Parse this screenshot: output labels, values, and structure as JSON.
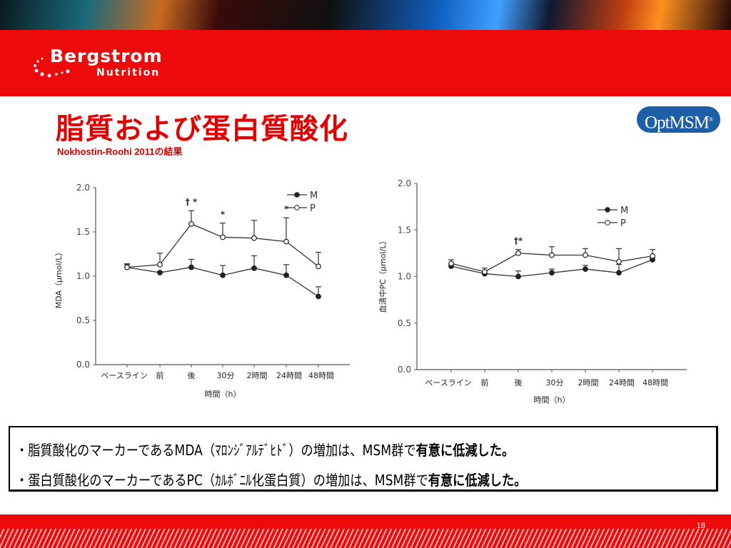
{
  "header": {
    "brand_name": "Bergstrom",
    "brand_sub": "Nutrition",
    "product_logo": "OptMSM",
    "product_logo_mark": "®"
  },
  "title": "脂質および蛋白質酸化",
  "subtitle": "Nokhostin-Roohi 2011の結果",
  "colors": {
    "accent_red": "#ec0a0a",
    "title_red": "#e00000",
    "optmsm_blue": "#1c5ea8"
  },
  "chart_data": [
    {
      "type": "line",
      "ylabel": "MDA（μmol/L）",
      "xlabel": "時間（h）",
      "categories": [
        "ベースライン",
        "前",
        "後",
        "30分",
        "2時間",
        "24時間",
        "48時間"
      ],
      "ylim": [
        0,
        2.0
      ],
      "yticks": [
        "0.0",
        "0.5",
        "1.0",
        "1.5",
        "2.0"
      ],
      "legend_position": "top-right",
      "series": [
        {
          "name": "M",
          "marker": "filled",
          "values": [
            1.1,
            1.04,
            1.1,
            1.01,
            1.09,
            1.01,
            0.77
          ],
          "error_upper": [
            1.13,
            1.05,
            1.19,
            1.12,
            1.23,
            1.13,
            0.88
          ]
        },
        {
          "name": "P",
          "marker": "open",
          "values": [
            1.1,
            1.13,
            1.59,
            1.44,
            1.43,
            1.39,
            1.11
          ],
          "error_upper": [
            1.14,
            1.26,
            1.74,
            1.6,
            1.63,
            1.66,
            1.27
          ]
        }
      ],
      "annotations": [
        {
          "category": "後",
          "text": "† *"
        },
        {
          "category": "30分",
          "text": "*"
        },
        {
          "category": "24時間",
          "text": "*"
        }
      ]
    },
    {
      "type": "line",
      "ylabel": "血清中PC（μmol/L）",
      "xlabel": "時間（h）",
      "categories": [
        "ベースライン",
        "前",
        "後",
        "30分",
        "2時間",
        "24時間",
        "48時間"
      ],
      "ylim": [
        0,
        2.0
      ],
      "yticks": [
        "0.0",
        "0.5",
        "1.0",
        "1.5",
        "2.0"
      ],
      "legend_position": "top-right",
      "series": [
        {
          "name": "M",
          "marker": "filled",
          "values": [
            1.11,
            1.03,
            1.0,
            1.04,
            1.08,
            1.04,
            1.18
          ],
          "error_upper": [
            1.13,
            1.05,
            1.06,
            1.08,
            1.12,
            1.13,
            1.2
          ]
        },
        {
          "name": "P",
          "marker": "open",
          "values": [
            1.14,
            1.05,
            1.25,
            1.23,
            1.23,
            1.16,
            1.22
          ],
          "error_upper": [
            1.18,
            1.09,
            1.29,
            1.32,
            1.3,
            1.3,
            1.29
          ]
        }
      ],
      "annotations": [
        {
          "category": "後",
          "text": "†*"
        }
      ]
    }
  ],
  "summary": {
    "line1_pre": "・脂質酸化のマーカーであるMDA（ﾏﾛﾝｼﾞｱﾙﾃﾞﾋﾄﾞ）の増加は、MSM群で",
    "line1_bold": "有意に低減した。",
    "line2_pre": "・蛋白質酸化のマーカーであるPC（ｶﾙﾎﾞﾆﾙ化蛋白質）の増加は、MSM群で",
    "line2_bold": "有意に低減した。"
  },
  "footer": {
    "page_number": "18"
  }
}
